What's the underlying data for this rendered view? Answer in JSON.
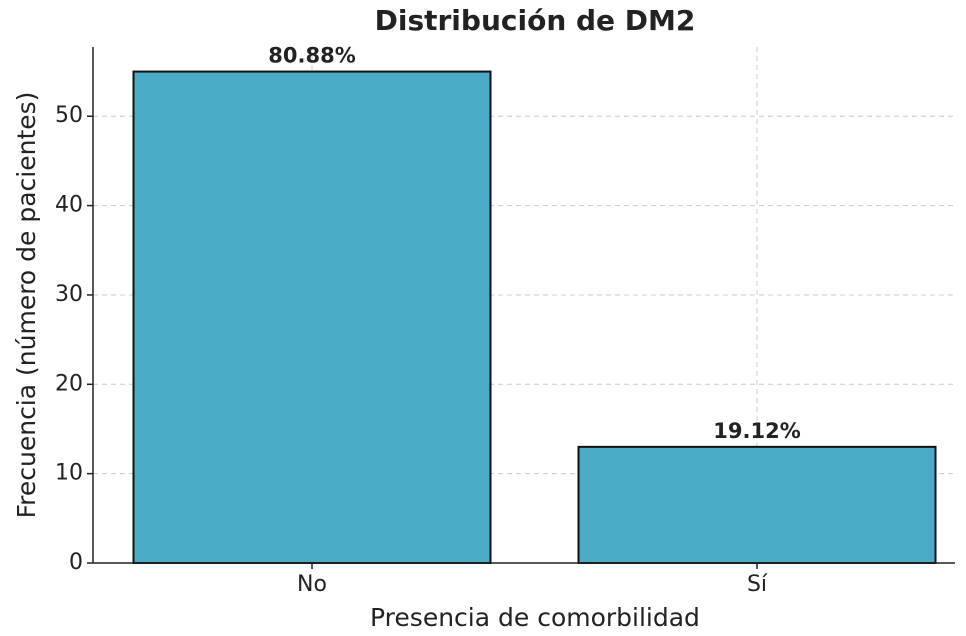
{
  "chart_data": {
    "type": "bar",
    "title": "Distribución de DM2",
    "x_label": "Presencia de comorbilidad",
    "y_label": "Frecuencia (número de pacientes)",
    "categories": [
      "No",
      "Sí"
    ],
    "values": [
      55,
      13
    ],
    "annotations": [
      "80.88%",
      "19.12%"
    ],
    "color": "#4aabc6",
    "edge_color": "#111111",
    "ylim": [
      0,
      57.75
    ],
    "yticks": [
      0,
      10,
      20,
      30,
      40,
      50
    ],
    "grid": true
  }
}
